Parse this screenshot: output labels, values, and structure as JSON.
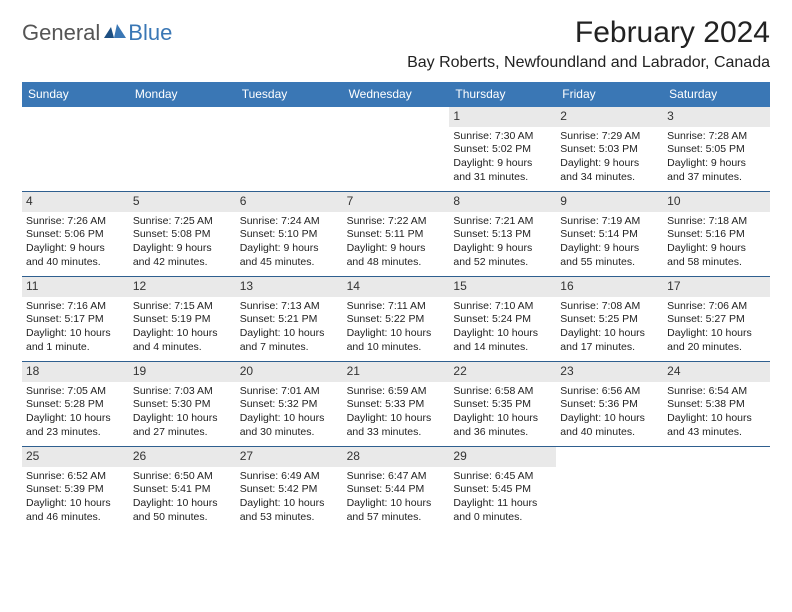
{
  "logo": {
    "part1": "General",
    "part2": "Blue"
  },
  "title": "February 2024",
  "location": "Bay Roberts, Newfoundland and Labrador, Canada",
  "colors": {
    "header_bg": "#3a77b5",
    "header_fg": "#ffffff",
    "daynum_bg": "#e9e9e9",
    "border": "#3a77b5",
    "text": "#222222"
  },
  "dayNames": [
    "Sunday",
    "Monday",
    "Tuesday",
    "Wednesday",
    "Thursday",
    "Friday",
    "Saturday"
  ],
  "startOffset": 4,
  "days": [
    {
      "n": 1,
      "sunrise": "7:30 AM",
      "sunset": "5:02 PM",
      "daylight": "9 hours and 31 minutes."
    },
    {
      "n": 2,
      "sunrise": "7:29 AM",
      "sunset": "5:03 PM",
      "daylight": "9 hours and 34 minutes."
    },
    {
      "n": 3,
      "sunrise": "7:28 AM",
      "sunset": "5:05 PM",
      "daylight": "9 hours and 37 minutes."
    },
    {
      "n": 4,
      "sunrise": "7:26 AM",
      "sunset": "5:06 PM",
      "daylight": "9 hours and 40 minutes."
    },
    {
      "n": 5,
      "sunrise": "7:25 AM",
      "sunset": "5:08 PM",
      "daylight": "9 hours and 42 minutes."
    },
    {
      "n": 6,
      "sunrise": "7:24 AM",
      "sunset": "5:10 PM",
      "daylight": "9 hours and 45 minutes."
    },
    {
      "n": 7,
      "sunrise": "7:22 AM",
      "sunset": "5:11 PM",
      "daylight": "9 hours and 48 minutes."
    },
    {
      "n": 8,
      "sunrise": "7:21 AM",
      "sunset": "5:13 PM",
      "daylight": "9 hours and 52 minutes."
    },
    {
      "n": 9,
      "sunrise": "7:19 AM",
      "sunset": "5:14 PM",
      "daylight": "9 hours and 55 minutes."
    },
    {
      "n": 10,
      "sunrise": "7:18 AM",
      "sunset": "5:16 PM",
      "daylight": "9 hours and 58 minutes."
    },
    {
      "n": 11,
      "sunrise": "7:16 AM",
      "sunset": "5:17 PM",
      "daylight": "10 hours and 1 minute."
    },
    {
      "n": 12,
      "sunrise": "7:15 AM",
      "sunset": "5:19 PM",
      "daylight": "10 hours and 4 minutes."
    },
    {
      "n": 13,
      "sunrise": "7:13 AM",
      "sunset": "5:21 PM",
      "daylight": "10 hours and 7 minutes."
    },
    {
      "n": 14,
      "sunrise": "7:11 AM",
      "sunset": "5:22 PM",
      "daylight": "10 hours and 10 minutes."
    },
    {
      "n": 15,
      "sunrise": "7:10 AM",
      "sunset": "5:24 PM",
      "daylight": "10 hours and 14 minutes."
    },
    {
      "n": 16,
      "sunrise": "7:08 AM",
      "sunset": "5:25 PM",
      "daylight": "10 hours and 17 minutes."
    },
    {
      "n": 17,
      "sunrise": "7:06 AM",
      "sunset": "5:27 PM",
      "daylight": "10 hours and 20 minutes."
    },
    {
      "n": 18,
      "sunrise": "7:05 AM",
      "sunset": "5:28 PM",
      "daylight": "10 hours and 23 minutes."
    },
    {
      "n": 19,
      "sunrise": "7:03 AM",
      "sunset": "5:30 PM",
      "daylight": "10 hours and 27 minutes."
    },
    {
      "n": 20,
      "sunrise": "7:01 AM",
      "sunset": "5:32 PM",
      "daylight": "10 hours and 30 minutes."
    },
    {
      "n": 21,
      "sunrise": "6:59 AM",
      "sunset": "5:33 PM",
      "daylight": "10 hours and 33 minutes."
    },
    {
      "n": 22,
      "sunrise": "6:58 AM",
      "sunset": "5:35 PM",
      "daylight": "10 hours and 36 minutes."
    },
    {
      "n": 23,
      "sunrise": "6:56 AM",
      "sunset": "5:36 PM",
      "daylight": "10 hours and 40 minutes."
    },
    {
      "n": 24,
      "sunrise": "6:54 AM",
      "sunset": "5:38 PM",
      "daylight": "10 hours and 43 minutes."
    },
    {
      "n": 25,
      "sunrise": "6:52 AM",
      "sunset": "5:39 PM",
      "daylight": "10 hours and 46 minutes."
    },
    {
      "n": 26,
      "sunrise": "6:50 AM",
      "sunset": "5:41 PM",
      "daylight": "10 hours and 50 minutes."
    },
    {
      "n": 27,
      "sunrise": "6:49 AM",
      "sunset": "5:42 PM",
      "daylight": "10 hours and 53 minutes."
    },
    {
      "n": 28,
      "sunrise": "6:47 AM",
      "sunset": "5:44 PM",
      "daylight": "10 hours and 57 minutes."
    },
    {
      "n": 29,
      "sunrise": "6:45 AM",
      "sunset": "5:45 PM",
      "daylight": "11 hours and 0 minutes."
    }
  ],
  "labels": {
    "sunrise": "Sunrise: ",
    "sunset": "Sunset: ",
    "daylight": "Daylight: "
  }
}
